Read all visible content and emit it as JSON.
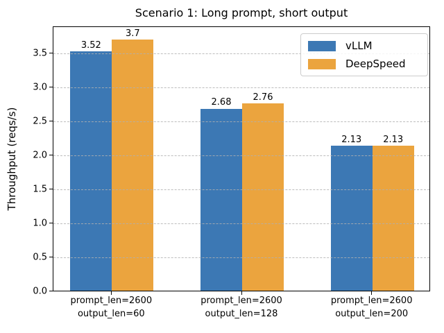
{
  "figure": {
    "background": "#ffffff",
    "axis_color": "#000000",
    "text_color": "#000000"
  },
  "chart_data": {
    "type": "bar",
    "title": "Scenario 1: Long prompt, short output",
    "xlabel": "",
    "ylabel": "Throughput (reqs/s)",
    "categories": [
      "prompt_len=2600\noutput_len=60",
      "prompt_len=2600\noutput_len=128",
      "prompt_len=2600\noutput_len=200"
    ],
    "series": [
      {
        "name": "vLLM",
        "color": "#3c78b4",
        "values": [
          3.52,
          2.68,
          2.13
        ],
        "labels": [
          "3.52",
          "2.68",
          "2.13"
        ]
      },
      {
        "name": "DeepSpeed",
        "color": "#eba43e",
        "values": [
          3.7,
          2.76,
          2.13
        ],
        "labels": [
          "3.7",
          "2.76",
          "2.13"
        ]
      }
    ],
    "ylim": [
      0,
      3.9
    ],
    "yticks": [
      {
        "value": 0.0,
        "label": "0.0"
      },
      {
        "value": 0.5,
        "label": "0.5"
      },
      {
        "value": 1.0,
        "label": "1.0"
      },
      {
        "value": 1.5,
        "label": "1.5"
      },
      {
        "value": 2.0,
        "label": "2.0"
      },
      {
        "value": 2.5,
        "label": "2.5"
      },
      {
        "value": 3.0,
        "label": "3.0"
      },
      {
        "value": 3.5,
        "label": "3.5"
      }
    ],
    "grid": {
      "axis": "y",
      "style": "dashed",
      "color": "#b0b0b0",
      "over_bars": true
    },
    "legend": {
      "position": "upper right",
      "entries": [
        "vLLM",
        "DeepSpeed"
      ]
    }
  }
}
